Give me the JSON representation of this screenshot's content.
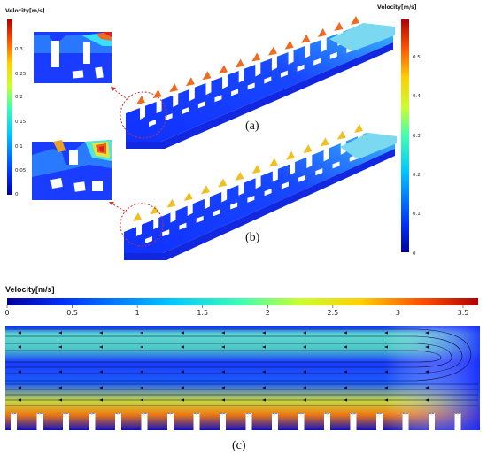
{
  "figure": {
    "panels": [
      {
        "id": "a",
        "label": "(a)"
      },
      {
        "id": "b",
        "label": "(b)"
      },
      {
        "id": "c",
        "label": "(c)"
      }
    ]
  },
  "colorbars": {
    "inset": {
      "title": "Velocity[m/s]",
      "ticks": [
        "0.3",
        "0.25",
        "0.2",
        "0.15",
        "0.1",
        "0.05",
        "0"
      ]
    },
    "right": {
      "title": "Velocity[m/s]",
      "ticks": [
        "0.5",
        "0.4",
        "0.3",
        "0.2",
        "0.1",
        "0"
      ]
    },
    "bottom": {
      "title": "Velocity[m/s]",
      "ticks": [
        "0",
        "0.5",
        "1",
        "1.5",
        "2",
        "2.5",
        "3",
        "3.5"
      ]
    }
  },
  "colors": {
    "jet_low": "#1a1aff",
    "jet_mid": "#2be0d0",
    "jet_high": "#e0201a",
    "leader": "#d0302a"
  }
}
